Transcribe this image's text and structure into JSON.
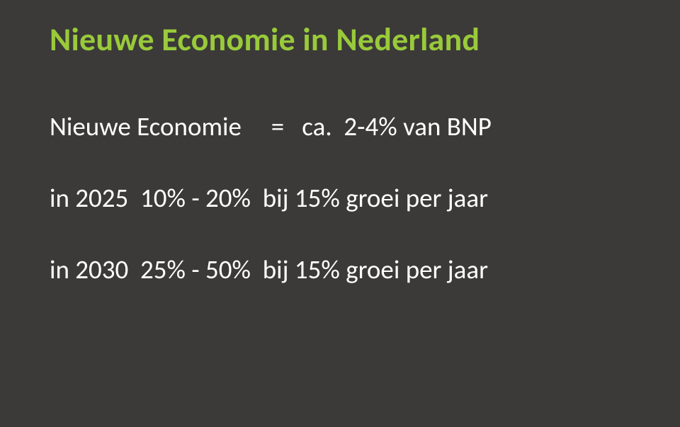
{
  "slide": {
    "background_color": "#3b3a38",
    "title": {
      "text": "Nieuwe Economie in Nederland",
      "color": "#99ca3a",
      "font_size_pt": 34,
      "font_weight": 700
    },
    "body": {
      "color": "#ffffff",
      "font_size_pt": 28,
      "font_weight": 400,
      "lines": [
        "Nieuwe Economie     =   ca.  2-4% van BNP",
        "in 2025  10% - 20%  bij 15% groei per jaar",
        "in 2030  25% - 50%  bij 15% groei per jaar"
      ]
    }
  }
}
